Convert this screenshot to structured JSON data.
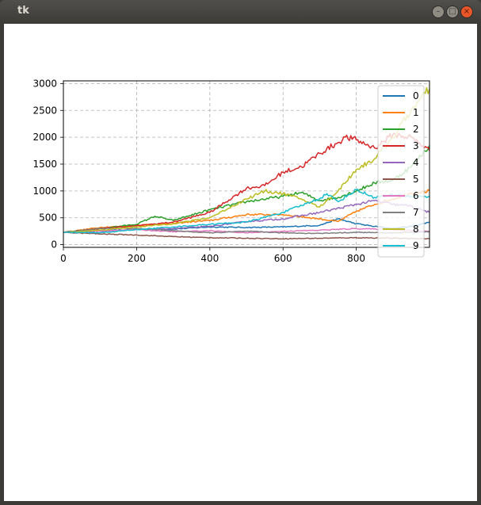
{
  "window": {
    "title": "tk",
    "buttons": {
      "minimize": "–",
      "maximize": "□",
      "close": "×"
    }
  },
  "chart_data": {
    "type": "line",
    "title": "",
    "xlabel": "",
    "ylabel": "",
    "xlim": [
      0,
      1000
    ],
    "ylim": [
      -50,
      3050
    ],
    "grid": true,
    "grid_style": "dashed",
    "legend_position": "top-right",
    "x_ticks": [
      0,
      200,
      400,
      600,
      800
    ],
    "y_ticks": [
      0,
      500,
      1000,
      1500,
      2000,
      2500,
      3000
    ],
    "x_tick_labels": [
      "0",
      "200",
      "400",
      "600",
      "800"
    ],
    "y_tick_labels": [
      "0",
      "500",
      "1000",
      "1500",
      "2000",
      "2500",
      "3000"
    ],
    "series": [
      {
        "name": "0",
        "color": "#1f77b4",
        "x": [
          0,
          100,
          200,
          300,
          400,
          500,
          600,
          700,
          750,
          800,
          850,
          900,
          950,
          1000
        ],
        "y": [
          230,
          260,
          280,
          290,
          330,
          320,
          330,
          360,
          480,
          390,
          340,
          300,
          340,
          420
        ]
      },
      {
        "name": "1",
        "color": "#ff7f0e",
        "x": [
          0,
          100,
          200,
          300,
          400,
          500,
          600,
          700,
          750,
          800,
          850,
          900,
          950,
          1000
        ],
        "y": [
          230,
          320,
          360,
          400,
          450,
          560,
          560,
          480,
          430,
          620,
          750,
          850,
          960,
          1000
        ]
      },
      {
        "name": "2",
        "color": "#2ca02c",
        "x": [
          0,
          100,
          200,
          250,
          300,
          400,
          500,
          600,
          650,
          700,
          750,
          800,
          850,
          900,
          950,
          1000
        ],
        "y": [
          230,
          300,
          380,
          530,
          450,
          650,
          800,
          900,
          970,
          820,
          880,
          1000,
          1150,
          1200,
          1450,
          1850
        ]
      },
      {
        "name": "3",
        "color": "#d62728",
        "x": [
          0,
          100,
          200,
          300,
          400,
          500,
          550,
          600,
          650,
          700,
          750,
          770,
          800,
          850,
          900,
          950,
          1000
        ],
        "y": [
          230,
          300,
          350,
          420,
          600,
          1050,
          1100,
          1350,
          1450,
          1700,
          1900,
          2000,
          1950,
          1800,
          2050,
          2000,
          1750
        ]
      },
      {
        "name": "4",
        "color": "#9467bd",
        "x": [
          0,
          100,
          200,
          300,
          400,
          500,
          600,
          700,
          800,
          850,
          900,
          950,
          1000
        ],
        "y": [
          230,
          250,
          280,
          300,
          340,
          430,
          480,
          600,
          750,
          820,
          750,
          720,
          600
        ]
      },
      {
        "name": "5",
        "color": "#8c564b",
        "x": [
          0,
          100,
          200,
          300,
          400,
          500,
          600,
          700,
          800,
          900,
          1000
        ],
        "y": [
          230,
          200,
          180,
          150,
          130,
          120,
          110,
          120,
          130,
          120,
          110
        ]
      },
      {
        "name": "6",
        "color": "#e377c2",
        "x": [
          0,
          100,
          200,
          300,
          400,
          500,
          600,
          700,
          800,
          900,
          950,
          1000
        ],
        "y": [
          230,
          260,
          280,
          240,
          260,
          220,
          250,
          270,
          300,
          280,
          260,
          250
        ]
      },
      {
        "name": "7",
        "color": "#7f7f7f",
        "x": [
          0,
          100,
          200,
          300,
          400,
          500,
          600,
          700,
          800,
          900,
          1000
        ],
        "y": [
          230,
          300,
          300,
          260,
          220,
          250,
          220,
          210,
          230,
          220,
          240
        ]
      },
      {
        "name": "8",
        "color": "#bcbd22",
        "x": [
          0,
          100,
          200,
          300,
          400,
          500,
          550,
          600,
          650,
          700,
          750,
          800,
          850,
          900,
          950,
          1000
        ],
        "y": [
          230,
          270,
          330,
          390,
          500,
          850,
          1000,
          950,
          850,
          700,
          1000,
          1400,
          1600,
          2000,
          2500,
          2900
        ]
      },
      {
        "name": "9",
        "color": "#17becf",
        "x": [
          0,
          100,
          200,
          300,
          400,
          500,
          600,
          700,
          720,
          750,
          800,
          850,
          900,
          950,
          1000
        ],
        "y": [
          230,
          220,
          280,
          330,
          380,
          420,
          600,
          860,
          950,
          800,
          1020,
          880,
          920,
          900,
          900
        ]
      }
    ]
  }
}
